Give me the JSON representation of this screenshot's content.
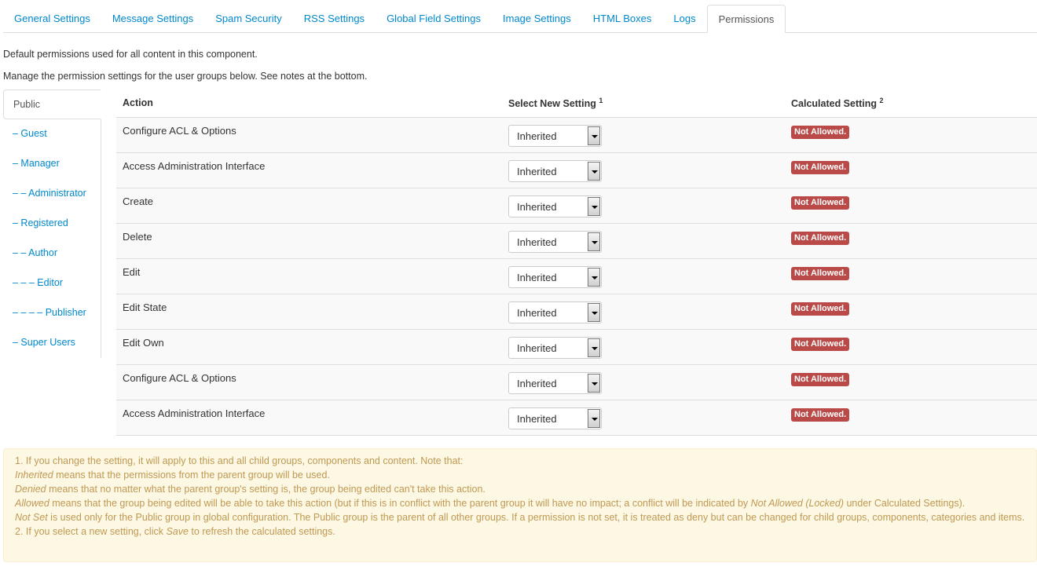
{
  "tabs": [
    "General Settings",
    "Message Settings",
    "Spam Security",
    "RSS Settings",
    "Global Field Settings",
    "Image Settings",
    "HTML Boxes",
    "Logs",
    "Permissions"
  ],
  "active_tab": "Permissions",
  "intro": [
    "Default permissions used for all content in this component.",
    "Manage the permission settings for the user groups below. See notes at the bottom."
  ],
  "groups": [
    "Public",
    "– Guest",
    "– Manager",
    "– – Administrator",
    "– Registered",
    "– – Author",
    "– – – Editor",
    "– – – – Publisher",
    "– Super Users"
  ],
  "table": {
    "headers": {
      "action": "Action",
      "select": "Select New Setting",
      "select_sup": "1",
      "calc": "Calculated Setting",
      "calc_sup": "2"
    },
    "rows": [
      {
        "action": "Configure ACL & Options",
        "setting": "Inherited",
        "calculated": "Not Allowed."
      },
      {
        "action": "Access Administration Interface",
        "setting": "Inherited",
        "calculated": "Not Allowed."
      },
      {
        "action": "Create",
        "setting": "Inherited",
        "calculated": "Not Allowed."
      },
      {
        "action": "Delete",
        "setting": "Inherited",
        "calculated": "Not Allowed."
      },
      {
        "action": "Edit",
        "setting": "Inherited",
        "calculated": "Not Allowed."
      },
      {
        "action": "Edit State",
        "setting": "Inherited",
        "calculated": "Not Allowed."
      },
      {
        "action": "Edit Own",
        "setting": "Inherited",
        "calculated": "Not Allowed."
      },
      {
        "action": "Configure ACL & Options",
        "setting": "Inherited",
        "calculated": "Not Allowed."
      },
      {
        "action": "Access Administration Interface",
        "setting": "Inherited",
        "calculated": "Not Allowed."
      }
    ]
  },
  "notes": [
    [
      {
        "t": "1. If you change the setting, it will apply to this and all child groups, components and content. Note that:"
      }
    ],
    [
      {
        "t": "Inherited",
        "i": true
      },
      {
        "t": " means that the permissions from the parent group will be used."
      }
    ],
    [
      {
        "t": "Denied",
        "i": true
      },
      {
        "t": " means that no matter what the parent group's setting is, the group being edited can't take this action."
      }
    ],
    [
      {
        "t": "Allowed",
        "i": true
      },
      {
        "t": " means that the group being edited will be able to take this action (but if this is in conflict with the parent group it will have no impact; a conflict will be indicated by "
      },
      {
        "t": "Not Allowed (Locked)",
        "i": true
      },
      {
        "t": " under Calculated Settings)."
      }
    ],
    [
      {
        "t": "Not Set",
        "i": true
      },
      {
        "t": " is used only for the Public group in global configuration. The Public group is the parent of all other groups. If a permission is not set, it is treated as deny but can be changed for child groups, components, categories and items."
      }
    ],
    [
      {
        "t": "2. If you select a new setting, click "
      },
      {
        "t": "Save",
        "i": true
      },
      {
        "t": " to refresh the calculated settings."
      }
    ]
  ],
  "colors": {
    "link": "#0088cc",
    "badge": "#b94a48",
    "notes_bg": "#fcf8e3",
    "notes_text": "#c09853"
  }
}
